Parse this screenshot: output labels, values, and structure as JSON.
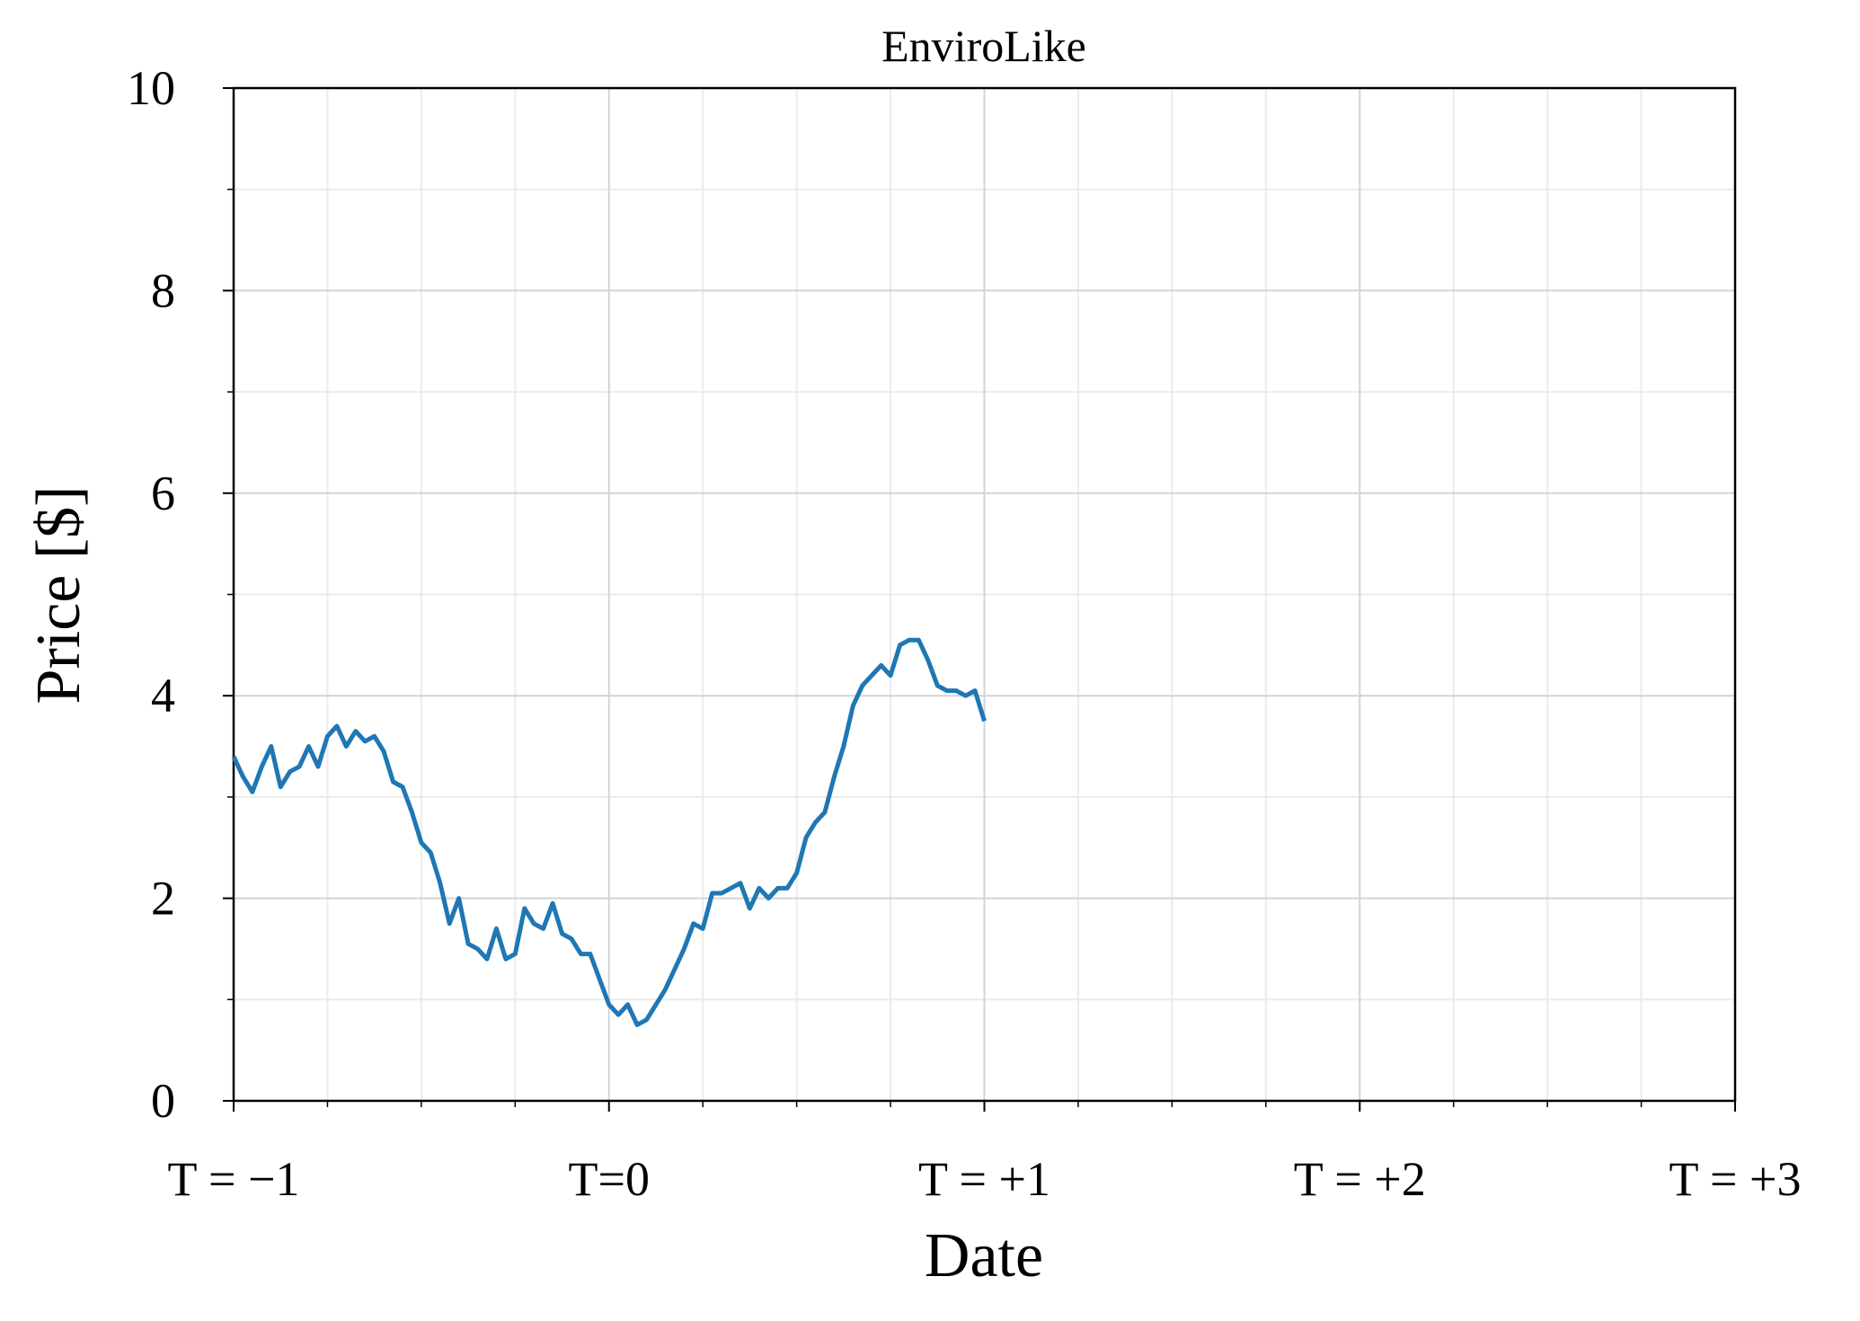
{
  "chart_data": {
    "type": "line",
    "title": "EnviroLike",
    "x_label": "Date",
    "y_label": "Price [$]",
    "x": [
      -1.0,
      -0.975,
      -0.95,
      -0.925,
      -0.9,
      -0.875,
      -0.85,
      -0.825,
      -0.8,
      -0.775,
      -0.75,
      -0.725,
      -0.7,
      -0.675,
      -0.65,
      -0.625,
      -0.6,
      -0.575,
      -0.55,
      -0.525,
      -0.5,
      -0.475,
      -0.45,
      -0.425,
      -0.4,
      -0.375,
      -0.35,
      -0.325,
      -0.3,
      -0.275,
      -0.25,
      -0.225,
      -0.2,
      -0.175,
      -0.15,
      -0.125,
      -0.1,
      -0.075,
      -0.05,
      -0.025,
      0.0,
      0.025,
      0.05,
      0.075,
      0.1,
      0.125,
      0.15,
      0.175,
      0.2,
      0.225,
      0.25,
      0.275,
      0.3,
      0.325,
      0.35,
      0.375,
      0.4,
      0.425,
      0.45,
      0.475,
      0.5,
      0.525,
      0.55,
      0.575,
      0.6,
      0.625,
      0.65,
      0.675,
      0.7,
      0.725,
      0.75,
      0.775,
      0.8,
      0.825,
      0.85,
      0.875,
      0.9,
      0.925,
      0.95,
      0.975,
      1.0
    ],
    "series": [
      {
        "name": "EnviroLike",
        "color": "#1f77b4",
        "values": [
          3.4,
          3.2,
          3.05,
          3.3,
          3.5,
          3.1,
          3.25,
          3.3,
          3.5,
          3.3,
          3.6,
          3.7,
          3.5,
          3.65,
          3.55,
          3.6,
          3.45,
          3.15,
          3.1,
          2.85,
          2.55,
          2.45,
          2.15,
          1.75,
          2.0,
          1.55,
          1.5,
          1.4,
          1.7,
          1.4,
          1.45,
          1.9,
          1.75,
          1.7,
          1.95,
          1.65,
          1.6,
          1.45,
          1.45,
          1.2,
          0.95,
          0.85,
          0.95,
          0.75,
          0.8,
          0.95,
          1.1,
          1.3,
          1.5,
          1.75,
          1.7,
          2.05,
          2.05,
          2.1,
          2.15,
          1.9,
          2.1,
          2.0,
          2.1,
          2.1,
          2.25,
          2.6,
          2.75,
          2.85,
          3.2,
          3.5,
          3.9,
          4.1,
          4.2,
          4.3,
          4.2,
          4.5,
          4.55,
          4.55,
          4.35,
          4.1,
          4.05,
          4.05,
          4.0,
          4.05,
          3.75
        ]
      }
    ],
    "xlim": [
      -1,
      3
    ],
    "ylim": [
      0,
      10
    ],
    "xticks": [
      {
        "value": -1,
        "label": "T = −1"
      },
      {
        "value": 0,
        "label": "T=0"
      },
      {
        "value": 1,
        "label": "T = +1"
      },
      {
        "value": 2,
        "label": "T = +2"
      },
      {
        "value": 3,
        "label": "T = +3"
      }
    ],
    "yticks": [
      0,
      2,
      4,
      6,
      8,
      10
    ],
    "xminorticks": [
      -0.75,
      -0.5,
      -0.25,
      0.25,
      0.5,
      0.75,
      1.25,
      1.5,
      1.75,
      2.25,
      2.5,
      2.75
    ],
    "yminorticks": [
      1,
      3,
      5,
      7,
      9
    ],
    "grid": true
  }
}
